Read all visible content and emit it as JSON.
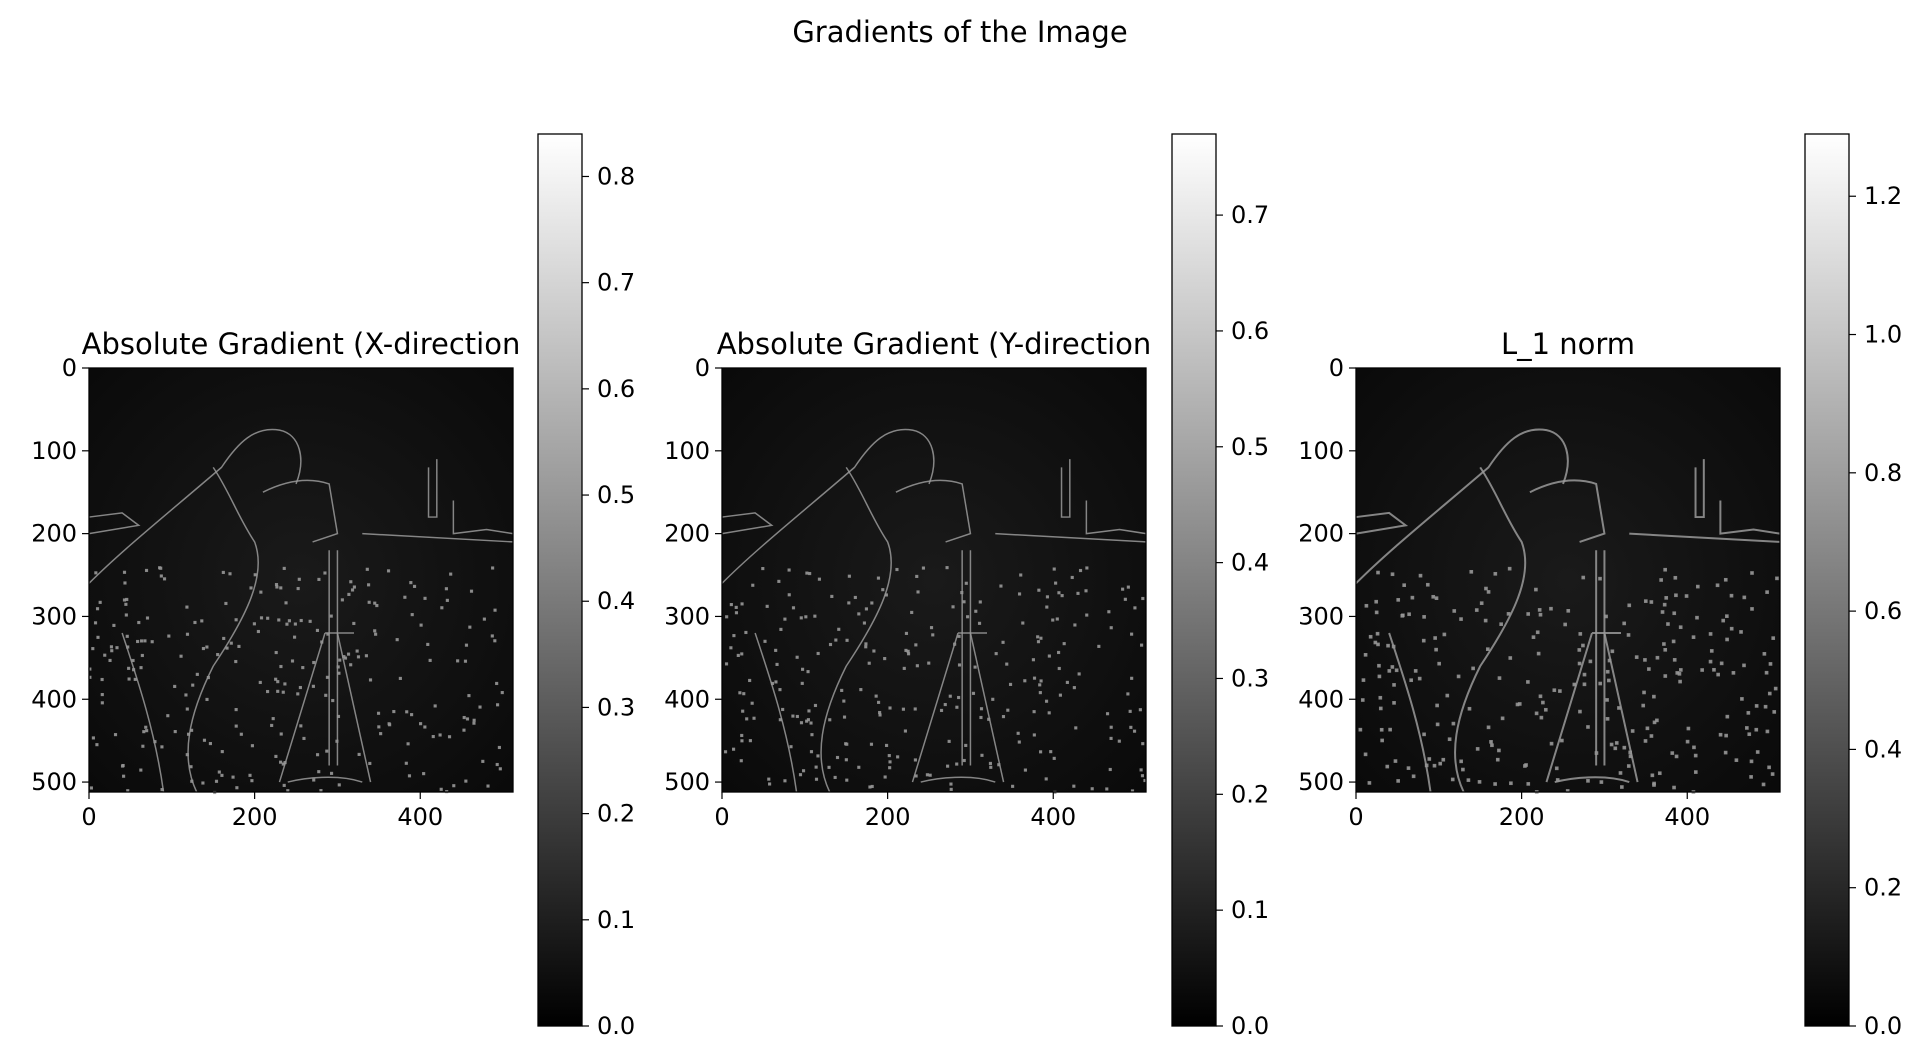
{
  "chart_data": {
    "suptitle": "Gradients of the Image",
    "panels": [
      {
        "type": "heatmap",
        "title": "Absolute Gradient (X-direction",
        "image_shape": [
          512,
          512
        ],
        "xlim": [
          0,
          512
        ],
        "ylim": [
          512,
          0
        ],
        "xticks": [
          "0",
          "200",
          "400"
        ],
        "xtick_values": [
          0,
          200,
          400
        ],
        "yticks": [
          "0",
          "100",
          "200",
          "300",
          "400",
          "500"
        ],
        "ytick_values": [
          0,
          100,
          200,
          300,
          400,
          500
        ],
        "colormap": "gray",
        "colorbar": {
          "range": [
            0,
            0.84
          ],
          "ticks": [
            "0.0",
            "0.1",
            "0.2",
            "0.3",
            "0.4",
            "0.5",
            "0.6",
            "0.7",
            "0.8"
          ],
          "tick_values": [
            0,
            0.1,
            0.2,
            0.3,
            0.4,
            0.5,
            0.6,
            0.7,
            0.8
          ]
        }
      },
      {
        "type": "heatmap",
        "title": "Absolute Gradient (Y-direction",
        "image_shape": [
          512,
          512
        ],
        "xlim": [
          0,
          512
        ],
        "ylim": [
          512,
          0
        ],
        "xticks": [
          "0",
          "200",
          "400"
        ],
        "xtick_values": [
          0,
          200,
          400
        ],
        "yticks": [
          "0",
          "100",
          "200",
          "300",
          "400",
          "500"
        ],
        "ytick_values": [
          0,
          100,
          200,
          300,
          400,
          500
        ],
        "colormap": "gray",
        "colorbar": {
          "range": [
            0,
            0.77
          ],
          "ticks": [
            "0.0",
            "0.1",
            "0.2",
            "0.3",
            "0.4",
            "0.5",
            "0.6",
            "0.7"
          ],
          "tick_values": [
            0,
            0.1,
            0.2,
            0.3,
            0.4,
            0.5,
            0.6,
            0.7
          ]
        }
      },
      {
        "type": "heatmap",
        "title": "L_1 norm",
        "image_shape": [
          512,
          512
        ],
        "xlim": [
          0,
          512
        ],
        "ylim": [
          512,
          0
        ],
        "xticks": [
          "0",
          "200",
          "400"
        ],
        "xtick_values": [
          0,
          200,
          400
        ],
        "yticks": [
          "0",
          "100",
          "200",
          "300",
          "400",
          "500"
        ],
        "ytick_values": [
          0,
          100,
          200,
          300,
          400,
          500
        ],
        "colormap": "gray",
        "colorbar": {
          "range": [
            0,
            1.29
          ],
          "ticks": [
            "0.0",
            "0.2",
            "0.4",
            "0.6",
            "0.8",
            "1.0",
            "1.2"
          ],
          "tick_values": [
            0,
            0.2,
            0.4,
            0.6,
            0.8,
            1.0,
            1.2
          ]
        }
      }
    ]
  }
}
